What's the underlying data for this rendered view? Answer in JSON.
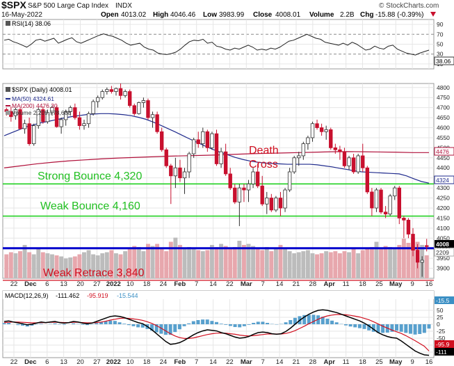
{
  "header": {
    "symbol": "$SPX",
    "name": "S&P 500 Large Cap Index",
    "exchange": "INDX",
    "watermark": "© StockCharts.com",
    "date": "16-May-2022",
    "open_label": "Open",
    "open": "4013.02",
    "high_label": "High",
    "high": "4046.46",
    "low_label": "Low",
    "low": "3983.99",
    "close_label": "Close",
    "close": "4008.01",
    "volume_label": "Volume",
    "volume": "2.2B",
    "chg_label": "Chg",
    "chg": "-15.88 (-0.39%)"
  },
  "colors": {
    "up": "#2f2f2f",
    "down": "#c8102e",
    "ma50": "#1f2a8c",
    "ma200": "#b0103a",
    "green": "#22d022",
    "blue_line": "#0000cc",
    "annot_red": "#d10f1f",
    "vol_down": "#e7a7ad",
    "vol_up": "#bcbcbc",
    "macd_hist": "#3b8fc4",
    "grid": "#e6e6e6"
  },
  "rsi_panel": {
    "legend": "RSI(14) 38.06",
    "ticks": [
      "90",
      "70",
      "50",
      "30",
      "10"
    ],
    "last_value": "38.06"
  },
  "price_panel": {
    "legend_main": "$SPX (Daily) 4008.01",
    "legend_ma50": "MA(50) 4324.61",
    "legend_ma200": "MA(200) 4476.30",
    "legend_volume": "Volume 2,209,778,688",
    "ticks": [
      "4800",
      "4750",
      "4700",
      "4650",
      "4600",
      "4550",
      "4500",
      "4450",
      "4400",
      "4350",
      "4300",
      "4250",
      "4200",
      "4150",
      "4100",
      "4050",
      "4000",
      "3950",
      "3900",
      "3850"
    ],
    "badges": {
      "ma200": "4476",
      "ma50": "4324",
      "close": "4008",
      "volume": "2209"
    },
    "annotations": {
      "death_cross_line1": "Death",
      "death_cross_line2": "Cross",
      "strong_bounce": "Strong Bounce 4,320",
      "weak_bounce": "Weak Bounce 4,160",
      "weak_retrace": "Weak Retrace 3,840"
    },
    "levels": {
      "strong_bounce": 4320,
      "weak_bounce": 4160,
      "blue_support": 4000,
      "weak_retrace": 3840
    }
  },
  "macd_panel": {
    "legend_macd": "MACD(12,26,9)",
    "macd_value": "-111.462",
    "signal_value": "-95.919",
    "hist_value": "-15.544",
    "ticks": [
      "50",
      "25",
      "0",
      "-25",
      "-50",
      "-75",
      "-100"
    ],
    "badges": {
      "hist": "-15.5",
      "signal": "-95.9",
      "macd": "-111"
    }
  },
  "x_axis": [
    "22",
    "Dec",
    "6",
    "13",
    "20",
    "27",
    "2022",
    "10",
    "18",
    "24",
    "Feb",
    "7",
    "14",
    "22",
    "Mar",
    "7",
    "14",
    "21",
    "28",
    "Apr",
    "11",
    "18",
    "25",
    "May",
    "9",
    "16"
  ],
  "chart_data": {
    "type": "candlestick",
    "title": "$SPX S&P 500 Large Cap Index INDX",
    "ylim": [
      3850,
      4820
    ],
    "ohlc": [
      [
        4690,
        4700,
        4660,
        4680
      ],
      [
        4680,
        4705,
        4630,
        4655
      ],
      [
        4660,
        4700,
        4640,
        4690
      ],
      [
        4690,
        4700,
        4590,
        4595
      ],
      [
        4595,
        4640,
        4570,
        4620
      ],
      [
        4620,
        4650,
        4510,
        4520
      ],
      [
        4520,
        4620,
        4510,
        4610
      ],
      [
        4610,
        4700,
        4595,
        4690
      ],
      [
        4690,
        4705,
        4620,
        4630
      ],
      [
        4630,
        4690,
        4620,
        4675
      ],
      [
        4675,
        4710,
        4660,
        4700
      ],
      [
        4700,
        4710,
        4600,
        4605
      ],
      [
        4605,
        4650,
        4570,
        4640
      ],
      [
        4640,
        4690,
        4610,
        4680
      ],
      [
        4680,
        4710,
        4660,
        4700
      ],
      [
        4700,
        4720,
        4640,
        4650
      ],
      [
        4650,
        4680,
        4590,
        4610
      ],
      [
        4610,
        4640,
        4590,
        4620
      ],
      [
        4620,
        4680,
        4600,
        4670
      ],
      [
        4670,
        4740,
        4660,
        4730
      ],
      [
        4730,
        4760,
        4700,
        4750
      ],
      [
        4750,
        4790,
        4740,
        4780
      ],
      [
        4780,
        4800,
        4765,
        4790
      ],
      [
        4790,
        4808,
        4770,
        4780
      ],
      [
        4780,
        4800,
        4760,
        4795
      ],
      [
        4795,
        4820,
        4740,
        4760
      ],
      [
        4760,
        4790,
        4750,
        4780
      ],
      [
        4780,
        4790,
        4700,
        4710
      ],
      [
        4710,
        4720,
        4660,
        4670
      ],
      [
        4670,
        4730,
        4665,
        4725
      ],
      [
        4725,
        4750,
        4700,
        4735
      ],
      [
        4735,
        4745,
        4640,
        4650
      ],
      [
        4650,
        4680,
        4600,
        4665
      ],
      [
        4665,
        4680,
        4570,
        4580
      ],
      [
        4580,
        4600,
        4480,
        4490
      ],
      [
        4490,
        4500,
        4400,
        4410
      ],
      [
        4410,
        4420,
        4220,
        4360
      ],
      [
        4360,
        4450,
        4300,
        4400
      ],
      [
        4400,
        4440,
        4330,
        4350
      ],
      [
        4350,
        4400,
        4270,
        4380
      ],
      [
        4380,
        4480,
        4350,
        4470
      ],
      [
        4470,
        4550,
        4450,
        4540
      ],
      [
        4540,
        4580,
        4500,
        4520
      ],
      [
        4520,
        4600,
        4500,
        4580
      ],
      [
        4580,
        4590,
        4480,
        4500
      ],
      [
        4500,
        4580,
        4490,
        4570
      ],
      [
        4570,
        4590,
        4410,
        4420
      ],
      [
        4420,
        4500,
        4400,
        4480
      ],
      [
        4480,
        4520,
        4360,
        4370
      ],
      [
        4370,
        4400,
        4290,
        4300
      ],
      [
        4300,
        4320,
        4220,
        4230
      ],
      [
        4230,
        4320,
        4110,
        4300
      ],
      [
        4300,
        4320,
        4230,
        4290
      ],
      [
        4290,
        4340,
        4230,
        4320
      ],
      [
        4320,
        4400,
        4300,
        4380
      ],
      [
        4380,
        4420,
        4300,
        4310
      ],
      [
        4310,
        4360,
        4210,
        4220
      ],
      [
        4220,
        4280,
        4170,
        4250
      ],
      [
        4250,
        4270,
        4180,
        4190
      ],
      [
        4190,
        4260,
        4180,
        4250
      ],
      [
        4250,
        4280,
        4160,
        4200
      ],
      [
        4200,
        4300,
        4180,
        4290
      ],
      [
        4290,
        4400,
        4280,
        4380
      ],
      [
        4380,
        4460,
        4370,
        4450
      ],
      [
        4450,
        4480,
        4410,
        4460
      ],
      [
        4460,
        4530,
        4440,
        4520
      ],
      [
        4520,
        4560,
        4490,
        4550
      ],
      [
        4550,
        4630,
        4530,
        4620
      ],
      [
        4620,
        4640,
        4590,
        4600
      ],
      [
        4600,
        4620,
        4560,
        4580
      ],
      [
        4580,
        4610,
        4540,
        4590
      ],
      [
        4590,
        4600,
        4490,
        4500
      ],
      [
        4500,
        4520,
        4470,
        4490
      ],
      [
        4490,
        4510,
        4440,
        4480
      ],
      [
        4480,
        4500,
        4400,
        4410
      ],
      [
        4410,
        4460,
        4390,
        4450
      ],
      [
        4450,
        4470,
        4370,
        4380
      ],
      [
        4380,
        4470,
        4370,
        4460
      ],
      [
        4460,
        4520,
        4380,
        4400
      ],
      [
        4400,
        4410,
        4270,
        4280
      ],
      [
        4280,
        4300,
        4160,
        4200
      ],
      [
        4200,
        4300,
        4180,
        4290
      ],
      [
        4290,
        4300,
        4170,
        4180
      ],
      [
        4180,
        4210,
        4150,
        4170
      ],
      [
        4170,
        4270,
        4160,
        4260
      ],
      [
        4260,
        4310,
        4240,
        4300
      ],
      [
        4300,
        4310,
        4120,
        4150
      ],
      [
        4150,
        4160,
        4050,
        4140
      ],
      [
        4140,
        4150,
        4050,
        4070
      ],
      [
        4070,
        4100,
        3960,
        3990
      ],
      [
        3990,
        4020,
        3900,
        3930
      ],
      [
        3930,
        3960,
        3858,
        3940
      ],
      [
        4013.02,
        4046.46,
        3983.99,
        4008.01
      ]
    ],
    "ma50": [
      4560,
      4575,
      4590,
      4605,
      4615,
      4625,
      4632,
      4640,
      4648,
      4655,
      4660,
      4665,
      4668,
      4670,
      4670,
      4668,
      4665,
      4660,
      4652,
      4642,
      4628,
      4612,
      4595,
      4578,
      4560,
      4542,
      4525,
      4508,
      4492,
      4478,
      4465,
      4452,
      4442,
      4434,
      4428,
      4424,
      4422,
      4420,
      4418,
      4418,
      4418,
      4418,
      4415,
      4410,
      4405,
      4398,
      4392,
      4385,
      4380,
      4378,
      4376,
      4374,
      4372,
      4370,
      4360,
      4345,
      4332,
      4324
    ],
    "ma200": [
      4400,
      4410,
      4420,
      4428,
      4435,
      4440,
      4445,
      4449,
      4452,
      4455,
      4458,
      4460,
      4462,
      4464,
      4467,
      4470,
      4472,
      4474,
      4476,
      4478,
      4480,
      4481,
      4480,
      4479,
      4478,
      4476,
      4476
    ],
    "volume_millions": [
      2300,
      2500,
      2400,
      2600,
      3200,
      2500,
      2300,
      2900,
      2500,
      2400,
      2300,
      2200,
      2100,
      1900,
      2000,
      2100,
      2300,
      2500,
      2700,
      2300,
      2200,
      2400,
      2500,
      2700,
      2400,
      2300,
      2600,
      2800,
      3100,
      3000,
      2600,
      3300,
      3100,
      3300,
      2800,
      2600,
      3500,
      3900,
      3200,
      2900,
      3000,
      2800,
      2700,
      2600,
      2700,
      3200,
      3000,
      3300,
      3100,
      2900,
      3000,
      3600,
      3200,
      3300,
      3100,
      2800,
      2700,
      3000,
      2600,
      2800,
      3200,
      2800,
      2600,
      2400,
      2500,
      2600,
      2700,
      2400,
      2300,
      2400,
      2600,
      2500,
      2600,
      2400,
      2600,
      2500,
      2800,
      2400,
      2700,
      2900,
      3000,
      3500,
      2900,
      3100,
      3000,
      2800,
      3200,
      3800,
      3400,
      3900,
      3500,
      3200,
      2209
    ],
    "rsi": [
      58,
      60,
      55,
      52,
      48,
      44,
      50,
      58,
      60,
      56,
      59,
      62,
      52,
      56,
      60,
      63,
      55,
      52,
      56,
      60,
      64,
      68,
      71,
      68,
      66,
      62,
      58,
      52,
      48,
      50,
      52,
      44,
      40,
      38,
      32,
      30,
      29,
      31,
      34,
      40,
      48,
      55,
      58,
      57,
      60,
      52,
      54,
      46,
      44,
      40,
      38,
      42,
      40,
      44,
      48,
      44,
      38,
      40,
      38,
      42,
      40,
      44,
      50,
      56,
      58,
      62,
      66,
      70,
      66,
      62,
      60,
      54,
      52,
      50,
      48,
      52,
      48,
      54,
      50,
      44,
      38,
      40,
      46,
      42,
      40,
      46,
      48,
      40,
      36,
      32,
      30,
      28,
      32,
      35,
      38.06
    ],
    "macd": [
      10,
      12,
      8,
      5,
      2,
      -2,
      0,
      4,
      8,
      6,
      8,
      10,
      6,
      4,
      6,
      10,
      8,
      4,
      2,
      4,
      10,
      16,
      22,
      28,
      30,
      28,
      24,
      18,
      12,
      6,
      2,
      -8,
      -20,
      -34,
      -48,
      -62,
      -72,
      -70,
      -66,
      -58,
      -48,
      -38,
      -30,
      -24,
      -20,
      -22,
      -24,
      -30,
      -34,
      -40,
      -46,
      -50,
      -48,
      -44,
      -36,
      -30,
      -28,
      -30,
      -34,
      -36,
      -34,
      -26,
      -14,
      0,
      14,
      26,
      36,
      44,
      50,
      52,
      50,
      46,
      42,
      36,
      30,
      24,
      18,
      12,
      4,
      -6,
      -18,
      -30,
      -38,
      -44,
      -48,
      -50,
      -60,
      -72,
      -84,
      -96,
      -104,
      -110,
      -111.462
    ],
    "signal": [
      6,
      7,
      8,
      8,
      7,
      6,
      5,
      5,
      6,
      6,
      7,
      7,
      7,
      6,
      6,
      7,
      7,
      6,
      5,
      5,
      6,
      8,
      11,
      15,
      18,
      21,
      22,
      21,
      19,
      17,
      14,
      9,
      3,
      -5,
      -14,
      -24,
      -34,
      -42,
      -48,
      -51,
      -51,
      -49,
      -45,
      -41,
      -37,
      -34,
      -32,
      -32,
      -32,
      -34,
      -36,
      -39,
      -41,
      -42,
      -41,
      -39,
      -37,
      -35,
      -35,
      -35,
      -35,
      -33,
      -29,
      -23,
      -15,
      -7,
      2,
      10,
      18,
      25,
      30,
      33,
      35,
      35,
      34,
      32,
      29,
      26,
      21,
      16,
      9,
      1,
      -7,
      -14,
      -21,
      -27,
      -33,
      -41,
      -50,
      -59,
      -69,
      -79,
      -95.919
    ]
  }
}
